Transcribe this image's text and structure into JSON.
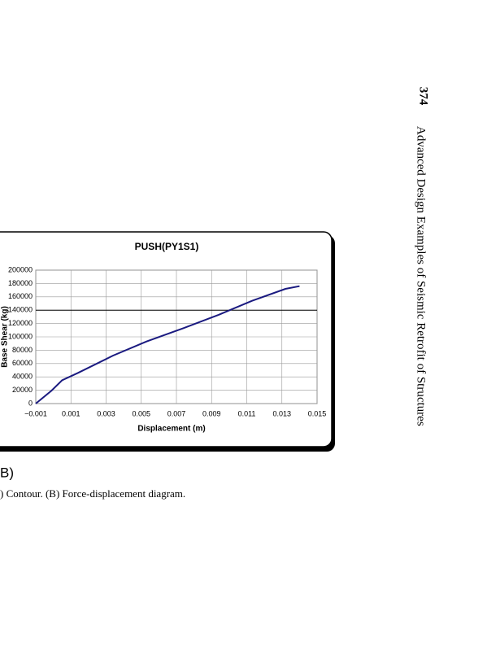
{
  "header": {
    "page_number": "374",
    "running_title": "Advanced Design Examples of Seismic Retrofit of Structures"
  },
  "chart_data": {
    "type": "line",
    "title": "PUSH(PY1S1)",
    "x_label": "Displacement (m)",
    "y_label": "Base Shear (kg)",
    "x": [
      -0.001,
      -0.0001,
      0.0005,
      0.0014,
      0.0034,
      0.0053,
      0.0074,
      0.0094,
      0.0113,
      0.0132,
      0.014
    ],
    "series": [
      {
        "color": "#1a1a80",
        "values": [
          0,
          19500,
          35000,
          46000,
          72000,
          93000,
          113000,
          133000,
          154000,
          172000,
          176000
        ]
      }
    ],
    "xlim": [
      -0.001,
      0.015
    ],
    "xticks": [
      {
        "value": -0.001,
        "label": "−0.001"
      },
      0.001,
      0.003,
      0.005,
      0.007,
      0.009,
      0.011,
      0.013,
      0.015
    ],
    "ylim": [
      0,
      200000
    ],
    "yticks": [
      0,
      20000,
      40000,
      60000,
      80000,
      100000,
      120000,
      140000,
      160000,
      180000,
      200000
    ],
    "grid": true,
    "hline": 140000
  },
  "panel_label": "B)",
  "caption": ") Contour. (B) Force-displacement diagram."
}
